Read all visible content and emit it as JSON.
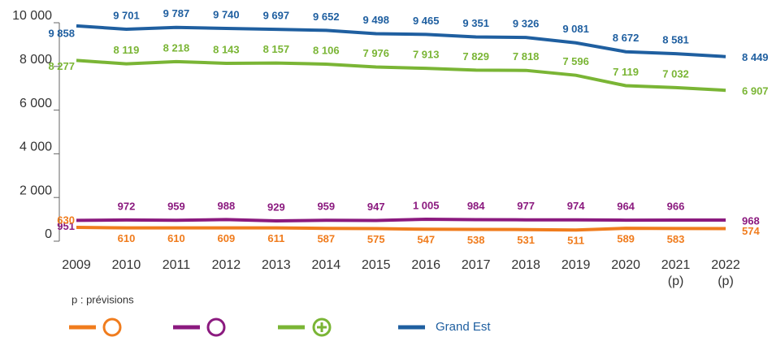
{
  "chart_data": {
    "type": "line",
    "categories": [
      "2009",
      "2010",
      "2011",
      "2012",
      "2013",
      "2014",
      "2015",
      "2016",
      "2017",
      "2018",
      "2019",
      "2020",
      "2021 (p)",
      "2022 (p)"
    ],
    "ylim": [
      0,
      10000
    ],
    "yticks": [
      0,
      {
        "value": 2000,
        "label": "2 000"
      },
      {
        "value": 4000,
        "label": "4 000"
      },
      {
        "value": 6000,
        "label": "6 000"
      },
      {
        "value": 8000,
        "label": "8 000"
      },
      {
        "value": 10000,
        "label": "10 000"
      }
    ],
    "note": "p : prévisions",
    "series": [
      {
        "name": "Grand Est",
        "color": "#1f5fa0",
        "values": [
          9858,
          9701,
          9787,
          9740,
          9697,
          9652,
          9498,
          9465,
          9351,
          9326,
          9081,
          8672,
          8581,
          8449
        ],
        "value_labels": [
          "9 858",
          "9 701",
          "9 787",
          "9 740",
          "9 697",
          "9 652",
          "9 498",
          "9 465",
          "9 351",
          "9 326",
          "9 081",
          "8 672",
          "8 581",
          "8 449"
        ]
      },
      {
        "color": "#7ab535",
        "values": [
          8277,
          8119,
          8218,
          8143,
          8157,
          8106,
          7976,
          7913,
          7829,
          7818,
          7596,
          7119,
          7032,
          6907
        ],
        "value_labels": [
          "8 277",
          "8 119",
          "8 218",
          "8 143",
          "8 157",
          "8 106",
          "7 976",
          "7 913",
          "7 829",
          "7 818",
          "7 596",
          "7 119",
          "7 032",
          "6 907"
        ]
      },
      {
        "color": "#8b1a7f",
        "values": [
          951,
          972,
          959,
          988,
          929,
          959,
          947,
          1005,
          984,
          977,
          974,
          964,
          966,
          968
        ],
        "value_labels": [
          "951",
          "972",
          "959",
          "988",
          "929",
          "959",
          "947",
          "1 005",
          "984",
          "977",
          "974",
          "964",
          "966",
          "968"
        ]
      },
      {
        "color": "#f07c1d",
        "values": [
          630,
          610,
          610,
          609,
          611,
          587,
          575,
          547,
          538,
          531,
          511,
          589,
          583,
          574
        ]
      }
    ]
  }
}
